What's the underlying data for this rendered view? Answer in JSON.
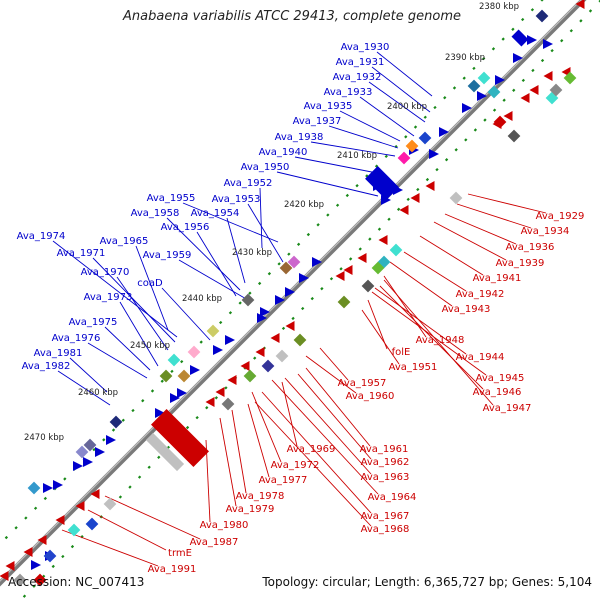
{
  "title": "Anabaena variabilis ATCC 29413, complete genome",
  "footer": {
    "accession": "Accession: NC_007413",
    "summary": "Topology: circular; Length: 6,365,727 bp; Genes: 5,104"
  },
  "scale_marks": [
    "2380 kbp",
    "2390 kbp",
    "2400 kbp",
    "2410 kbp",
    "2420 kbp",
    "2430 kbp",
    "2440 kbp",
    "2450 kbp",
    "2460 kbp",
    "2470 kbp"
  ],
  "colors": {
    "forward": "#0000cc",
    "reverse": "#cc0000",
    "backbone": "#777777",
    "tick": "#1a8a1a"
  },
  "forward_genes": [
    "Ava_1930",
    "Ava_1931",
    "Ava_1932",
    "Ava_1933",
    "Ava_1935",
    "Ava_1937",
    "Ava_1938",
    "Ava_1940",
    "Ava_1950",
    "Ava_1952",
    "Ava_1955",
    "Ava_1953",
    "Ava_1958",
    "Ava_1954",
    "Ava_1956",
    "Ava_1974",
    "Ava_1965",
    "Ava_1971",
    "Ava_1959",
    "Ava_1970",
    "coaD",
    "Ava_1973",
    "Ava_1975",
    "Ava_1976",
    "Ava_1981",
    "Ava_1982"
  ],
  "reverse_genes": [
    "Ava_1929",
    "Ava_1934",
    "Ava_1936",
    "Ava_1939",
    "Ava_1941",
    "Ava_1942",
    "Ava_1943",
    "Ava_1948",
    "Ava_1944",
    "folE",
    "Ava_1945",
    "Ava_1951",
    "Ava_1946",
    "Ava_1957",
    "Ava_1947",
    "Ava_1960",
    "Ava_1961",
    "Ava_1962",
    "Ava_1969",
    "Ava_1963",
    "Ava_1972",
    "Ava_1964",
    "Ava_1977",
    "Ava_1967",
    "Ava_1978",
    "Ava_1968",
    "Ava_1979",
    "Ava_1980",
    "Ava_1987",
    "trmE",
    "Ava_1991"
  ]
}
